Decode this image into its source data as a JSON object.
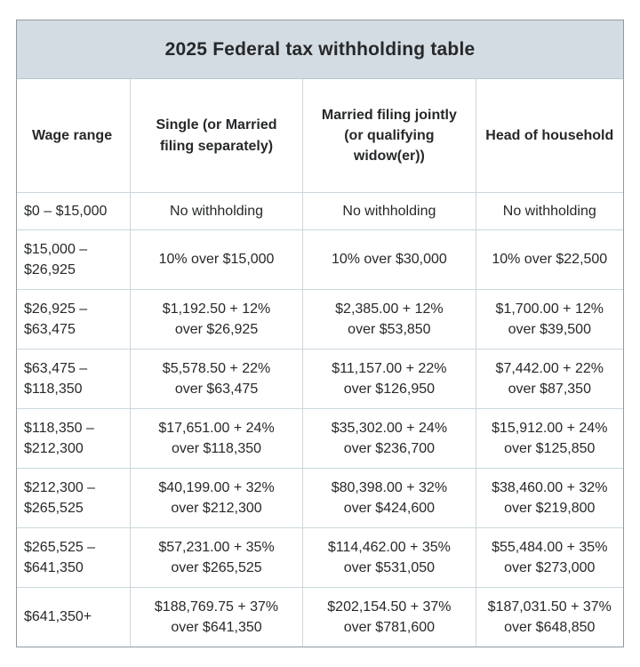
{
  "title": "2025 Federal tax withholding table",
  "colors": {
    "title_bg": "#d3dce2",
    "outer_border": "#8f9aa2",
    "inner_border": "#ccd7dc",
    "text": "#26282a"
  },
  "table": {
    "headers": [
      "Wage range",
      "Single (or Married\nfiling separately)",
      "Married filing jointly\n(or qualifying\nwidow(er))",
      "Head of household"
    ],
    "rows": [
      {
        "wage": "$0 – $15,000",
        "single": "No withholding",
        "married_joint": "No withholding",
        "head": "No withholding"
      },
      {
        "wage": "$15,000 –\n$26,925",
        "single": "10% over $15,000",
        "married_joint": "10% over $30,000",
        "head": "10% over $22,500"
      },
      {
        "wage": "$26,925 –\n$63,475",
        "single": "$1,192.50 + 12%\nover $26,925",
        "married_joint": "$2,385.00 + 12%\nover $53,850",
        "head": "$1,700.00 + 12%\nover $39,500"
      },
      {
        "wage": "$63,475 –\n$118,350",
        "single": "$5,578.50 + 22%\nover $63,475",
        "married_joint": "$11,157.00 + 22%\nover $126,950",
        "head": "$7,442.00 + 22%\nover $87,350"
      },
      {
        "wage": "$118,350 –\n$212,300",
        "single": "$17,651.00 + 24%\nover $118,350",
        "married_joint": "$35,302.00 + 24%\nover $236,700",
        "head": "$15,912.00 + 24%\nover $125,850"
      },
      {
        "wage": "$212,300 –\n$265,525",
        "single": "$40,199.00 + 32%\nover $212,300",
        "married_joint": "$80,398.00 + 32%\nover $424,600",
        "head": "$38,460.00 + 32%\nover $219,800"
      },
      {
        "wage": "$265,525 –\n$641,350",
        "single": "$57,231.00 + 35%\nover $265,525",
        "married_joint": "$114,462.00 + 35%\nover $531,050",
        "head": "$55,484.00 + 35%\nover $273,000"
      },
      {
        "wage": "$641,350+",
        "single": "$188,769.75 + 37%\nover $641,350",
        "married_joint": "$202,154.50 + 37%\nover $781,600",
        "head": "$187,031.50 + 37%\nover $648,850"
      }
    ]
  }
}
